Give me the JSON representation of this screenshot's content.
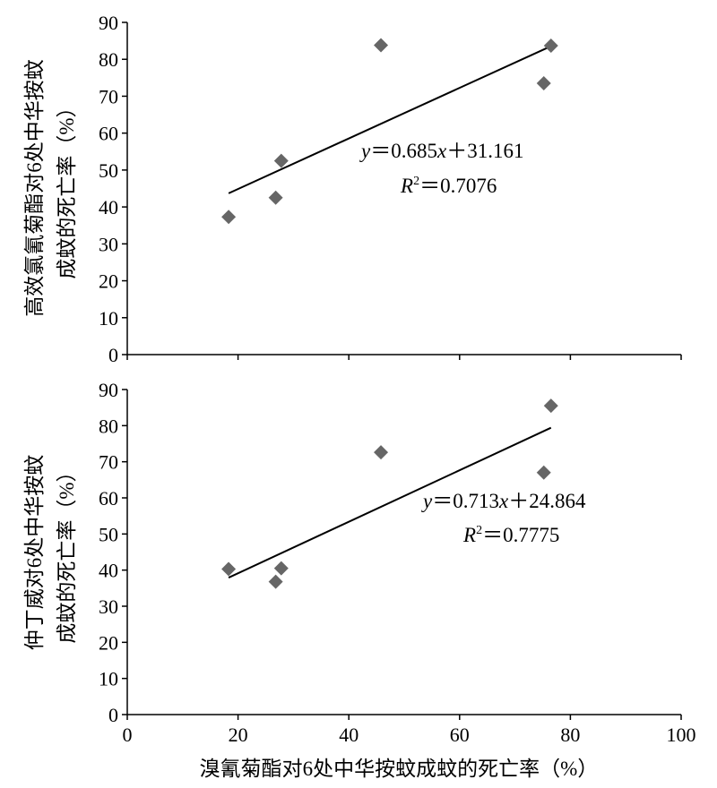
{
  "xaxis": {
    "label": "溴氰菊酯对6处中华按蚊成蚊的死亡率（%）"
  },
  "chart_data": [
    {
      "type": "scatter",
      "ylabel_lines": [
        "高效氯氰菊酯对6处中华按蚊",
        "成蚊的死亡率（%）"
      ],
      "xlim": [
        0,
        100
      ],
      "ylim": [
        0,
        90
      ],
      "xticks": [
        0,
        20,
        40,
        60,
        80,
        100
      ],
      "yticks": [
        0,
        10,
        20,
        30,
        40,
        50,
        60,
        70,
        80,
        90
      ],
      "x_tick_labels_shown": false,
      "grid": false,
      "marker": "diamond",
      "marker_color": "#666666",
      "points": [
        {
          "x": 18.3,
          "y": 37.3
        },
        {
          "x": 26.8,
          "y": 42.5
        },
        {
          "x": 27.8,
          "y": 52.5
        },
        {
          "x": 45.8,
          "y": 83.8
        },
        {
          "x": 75.2,
          "y": 73.5
        },
        {
          "x": 76.5,
          "y": 83.7
        }
      ],
      "trendline": {
        "slope": 0.685,
        "intercept": 31.161,
        "x_range": [
          18.3,
          76.5
        ]
      },
      "equation": {
        "y": "y",
        "eq1": "＝0.685",
        "x": "x",
        "eq2": "＋31.161"
      },
      "r2": {
        "R": "R",
        "sup": "2",
        "val": "＝0.7076"
      }
    },
    {
      "type": "scatter",
      "ylabel_lines": [
        "仲丁威对6处中华按蚊",
        "成蚊的死亡率（%）"
      ],
      "xlim": [
        0,
        100
      ],
      "ylim": [
        0,
        90
      ],
      "xticks": [
        0,
        20,
        40,
        60,
        80,
        100
      ],
      "yticks": [
        0,
        10,
        20,
        30,
        40,
        50,
        60,
        70,
        80,
        90
      ],
      "x_tick_labels_shown": true,
      "grid": false,
      "marker": "diamond",
      "marker_color": "#666666",
      "points": [
        {
          "x": 18.3,
          "y": 40.3
        },
        {
          "x": 26.8,
          "y": 36.8
        },
        {
          "x": 27.8,
          "y": 40.5
        },
        {
          "x": 45.8,
          "y": 72.6
        },
        {
          "x": 75.2,
          "y": 67.0
        },
        {
          "x": 76.5,
          "y": 85.5
        }
      ],
      "trendline": {
        "slope": 0.713,
        "intercept": 24.864,
        "x_range": [
          18.3,
          76.5
        ]
      },
      "equation": {
        "y": "y",
        "eq1": "＝0.713",
        "x": "x",
        "eq2": "＋24.864"
      },
      "r2": {
        "R": "R",
        "sup": "2",
        "val": "＝0.7775"
      }
    }
  ]
}
